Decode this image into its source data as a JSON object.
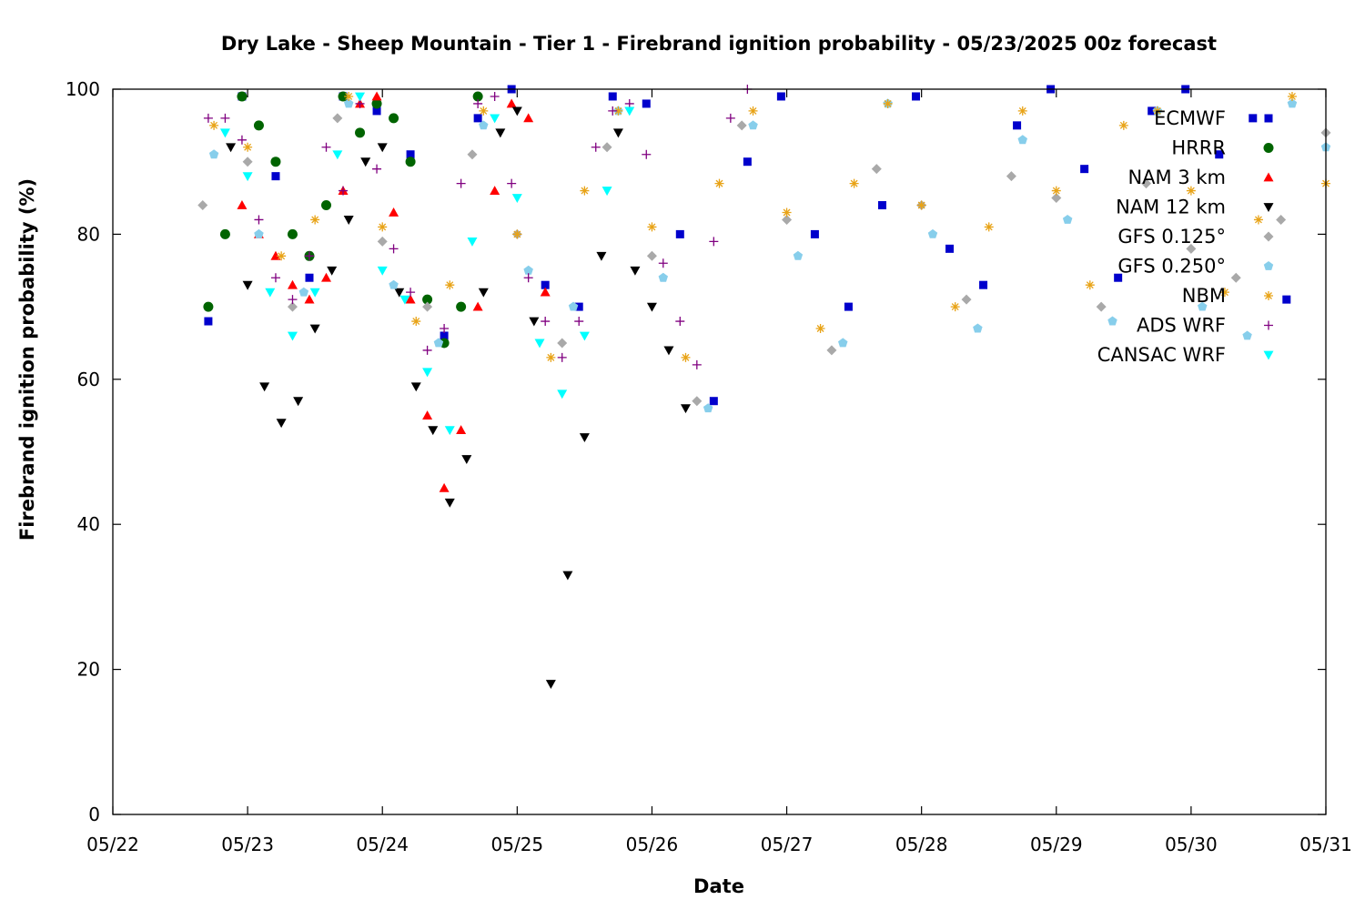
{
  "chart_data": {
    "type": "scatter",
    "title": "Dry Lake - Sheep Mountain - Tier 1 - Firebrand ignition probability - 05/23/2025 00z forecast",
    "xlabel": "Date",
    "ylabel": "Firebrand ignition probability (%)",
    "x_ticks": [
      "05/22",
      "05/23",
      "05/24",
      "05/25",
      "05/26",
      "05/27",
      "05/28",
      "05/29",
      "05/30",
      "05/31"
    ],
    "xlim": [
      "05/22",
      "05/31"
    ],
    "y_ticks": [
      0,
      20,
      40,
      60,
      80,
      100
    ],
    "ylim": [
      0,
      100
    ],
    "grid": false,
    "legend_position": "top-right",
    "series": [
      {
        "name": "ECMWF",
        "marker": "square",
        "color": "#0000cc",
        "x": [
          "05/22 17:00",
          "05/22 23:00",
          "05/23 05:00",
          "05/23 11:00",
          "05/23 17:00",
          "05/23 23:00",
          "05/24 05:00",
          "05/24 11:00",
          "05/24 17:00",
          "05/24 23:00",
          "05/25 05:00",
          "05/25 11:00",
          "05/25 17:00",
          "05/25 23:00",
          "05/26 05:00",
          "05/26 11:00",
          "05/26 17:00",
          "05/26 23:00",
          "05/27 05:00",
          "05/27 11:00",
          "05/27 17:00",
          "05/27 23:00",
          "05/28 05:00",
          "05/28 11:00",
          "05/28 17:00",
          "05/28 23:00",
          "05/29 05:00",
          "05/29 11:00",
          "05/29 17:00",
          "05/29 23:00",
          "05/30 05:00",
          "05/30 11:00",
          "05/30 17:00"
        ],
        "y": [
          68,
          99,
          88,
          74,
          99,
          97,
          91,
          66,
          96,
          100,
          73,
          70,
          99,
          98,
          80,
          57,
          90,
          99,
          80,
          70,
          84,
          99,
          78,
          73,
          95,
          100,
          89,
          74,
          97,
          100,
          91,
          96,
          71
        ]
      },
      {
        "name": "HRRR",
        "marker": "circle",
        "color": "#006400",
        "x": [
          "05/22 17:00",
          "05/22 20:00",
          "05/22 23:00",
          "05/23 02:00",
          "05/23 05:00",
          "05/23 08:00",
          "05/23 11:00",
          "05/23 14:00",
          "05/23 17:00",
          "05/23 20:00",
          "05/23 23:00",
          "05/24 02:00",
          "05/24 05:00",
          "05/24 08:00",
          "05/24 11:00",
          "05/24 14:00",
          "05/24 17:00"
        ],
        "y": [
          70,
          80,
          99,
          95,
          90,
          80,
          77,
          84,
          99,
          94,
          98,
          96,
          90,
          71,
          65,
          70,
          99
        ],
        "note": "HRRR legend marker drawn in the source; values estimated"
      },
      {
        "name": "NAM 3 km",
        "marker": "triangle-up",
        "color": "#ff0000",
        "x": [
          "05/22 23:00",
          "05/23 02:00",
          "05/23 05:00",
          "05/23 08:00",
          "05/23 11:00",
          "05/23 14:00",
          "05/23 17:00",
          "05/23 20:00",
          "05/23 23:00",
          "05/24 02:00",
          "05/24 05:00",
          "05/24 08:00",
          "05/24 11:00",
          "05/24 14:00",
          "05/24 17:00",
          "05/24 20:00",
          "05/24 23:00",
          "05/25 02:00",
          "05/25 05:00"
        ],
        "y": [
          84,
          80,
          77,
          73,
          71,
          74,
          86,
          98,
          99,
          83,
          71,
          55,
          45,
          53,
          70,
          86,
          98,
          96,
          72
        ]
      },
      {
        "name": "NAM 12 km",
        "marker": "triangle-down",
        "color": "#000000",
        "x": [
          "05/22 21:00",
          "05/23 00:00",
          "05/23 03:00",
          "05/23 06:00",
          "05/23 09:00",
          "05/23 12:00",
          "05/23 15:00",
          "05/23 18:00",
          "05/23 21:00",
          "05/24 00:00",
          "05/24 03:00",
          "05/24 06:00",
          "05/24 09:00",
          "05/24 12:00",
          "05/24 15:00",
          "05/24 18:00",
          "05/24 21:00",
          "05/25 00:00",
          "05/25 03:00",
          "05/25 06:00",
          "05/25 09:00",
          "05/25 12:00",
          "05/25 15:00",
          "05/25 18:00",
          "05/25 21:00",
          "05/26 00:00",
          "05/26 03:00",
          "05/26 06:00"
        ],
        "y": [
          92,
          73,
          59,
          54,
          57,
          67,
          75,
          82,
          90,
          92,
          72,
          59,
          53,
          43,
          49,
          72,
          94,
          97,
          68,
          18,
          33,
          52,
          77,
          94,
          75,
          70,
          64,
          56
        ]
      },
      {
        "name": "GFS 0.125°",
        "marker": "diamond",
        "color": "#a9a9a9",
        "x": [
          "05/22 16:00",
          "05/23 00:00",
          "05/23 08:00",
          "05/23 16:00",
          "05/24 00:00",
          "05/24 08:00",
          "05/24 16:00",
          "05/25 00:00",
          "05/25 08:00",
          "05/25 16:00",
          "05/26 00:00",
          "05/26 08:00",
          "05/26 16:00",
          "05/27 00:00",
          "05/27 08:00",
          "05/27 16:00",
          "05/28 00:00",
          "05/28 08:00",
          "05/28 16:00",
          "05/29 00:00",
          "05/29 08:00",
          "05/29 16:00",
          "05/30 00:00",
          "05/30 08:00",
          "05/30 16:00",
          "05/31 00:00"
        ],
        "y": [
          84,
          90,
          70,
          96,
          79,
          70,
          91,
          80,
          65,
          92,
          77,
          57,
          95,
          82,
          64,
          89,
          84,
          71,
          88,
          85,
          70,
          87,
          78,
          74,
          82,
          94
        ]
      },
      {
        "name": "GFS 0.250°",
        "marker": "pentagon",
        "color": "#87ceeb",
        "x": [
          "05/22 18:00",
          "05/23 02:00",
          "05/23 10:00",
          "05/23 18:00",
          "05/24 02:00",
          "05/24 10:00",
          "05/24 18:00",
          "05/25 02:00",
          "05/25 10:00",
          "05/25 18:00",
          "05/26 02:00",
          "05/26 10:00",
          "05/26 18:00",
          "05/27 02:00",
          "05/27 10:00",
          "05/27 18:00",
          "05/28 02:00",
          "05/28 10:00",
          "05/28 18:00",
          "05/29 02:00",
          "05/29 10:00",
          "05/29 18:00",
          "05/30 02:00",
          "05/30 10:00",
          "05/30 18:00",
          "05/31 00:00"
        ],
        "y": [
          91,
          80,
          72,
          98,
          73,
          65,
          95,
          75,
          70,
          97,
          74,
          56,
          95,
          77,
          65,
          98,
          80,
          67,
          93,
          82,
          68,
          97,
          70,
          66,
          98,
          92
        ]
      },
      {
        "name": "NBM",
        "marker": "asterisk",
        "color": "#e8a317",
        "x": [
          "05/22 18:00",
          "05/23 00:00",
          "05/23 06:00",
          "05/23 12:00",
          "05/23 18:00",
          "05/24 00:00",
          "05/24 06:00",
          "05/24 12:00",
          "05/24 18:00",
          "05/25 00:00",
          "05/25 06:00",
          "05/25 12:00",
          "05/25 18:00",
          "05/26 00:00",
          "05/26 06:00",
          "05/26 12:00",
          "05/26 18:00",
          "05/27 00:00",
          "05/27 06:00",
          "05/27 12:00",
          "05/27 18:00",
          "05/28 00:00",
          "05/28 06:00",
          "05/28 12:00",
          "05/28 18:00",
          "05/29 00:00",
          "05/29 06:00",
          "05/29 12:00",
          "05/29 18:00",
          "05/30 00:00",
          "05/30 06:00",
          "05/30 12:00",
          "05/30 18:00",
          "05/31 00:00"
        ],
        "y": [
          95,
          92,
          77,
          82,
          99,
          81,
          68,
          73,
          97,
          80,
          63,
          86,
          97,
          81,
          63,
          87,
          97,
          83,
          67,
          87,
          98,
          84,
          70,
          81,
          97,
          86,
          73,
          95,
          97,
          86,
          72,
          82,
          99,
          87
        ]
      },
      {
        "name": "ADS WRF",
        "marker": "plus",
        "color": "#800080",
        "x": [
          "05/22 17:00",
          "05/22 20:00",
          "05/22 23:00",
          "05/23 02:00",
          "05/23 05:00",
          "05/23 08:00",
          "05/23 11:00",
          "05/23 14:00",
          "05/23 17:00",
          "05/23 20:00",
          "05/23 23:00",
          "05/24 02:00",
          "05/24 05:00",
          "05/24 08:00",
          "05/24 11:00",
          "05/24 14:00",
          "05/24 17:00",
          "05/24 20:00",
          "05/24 23:00",
          "05/25 02:00",
          "05/25 05:00",
          "05/25 08:00",
          "05/25 11:00",
          "05/25 14:00",
          "05/25 17:00",
          "05/25 20:00",
          "05/25 23:00",
          "05/26 02:00",
          "05/26 05:00",
          "05/26 08:00",
          "05/26 11:00",
          "05/26 14:00",
          "05/26 17:00"
        ],
        "y": [
          96,
          96,
          93,
          82,
          74,
          71,
          77,
          92,
          86,
          98,
          89,
          78,
          72,
          64,
          67,
          87,
          98,
          99,
          87,
          74,
          68,
          63,
          68,
          92,
          97,
          98,
          91,
          76,
          68,
          62,
          79,
          96,
          100
        ]
      },
      {
        "name": "CANSAC WRF",
        "marker": "triangle-down",
        "color": "#00ffff",
        "x": [
          "05/22 20:00",
          "05/23 00:00",
          "05/23 04:00",
          "05/23 08:00",
          "05/23 12:00",
          "05/23 16:00",
          "05/23 20:00",
          "05/24 00:00",
          "05/24 04:00",
          "05/24 08:00",
          "05/24 12:00",
          "05/24 16:00",
          "05/24 20:00",
          "05/25 00:00",
          "05/25 04:00",
          "05/25 08:00",
          "05/25 12:00",
          "05/25 16:00",
          "05/25 20:00"
        ],
        "y": [
          94,
          88,
          72,
          66,
          72,
          91,
          99,
          75,
          71,
          61,
          53,
          79,
          96,
          85,
          65,
          58,
          66,
          86,
          97
        ]
      }
    ]
  }
}
